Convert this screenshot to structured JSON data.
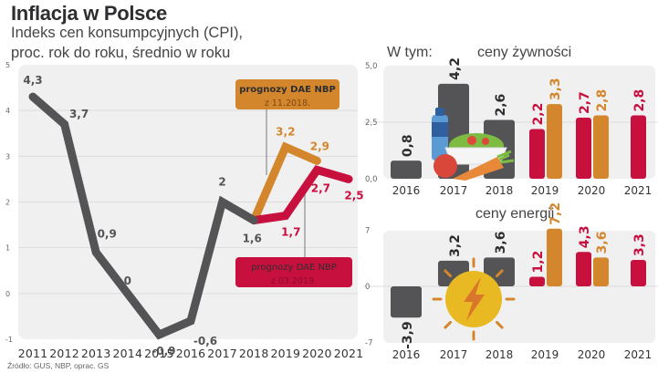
{
  "header": {
    "title": "Inflacja w Polsce",
    "subtitle_line1": "Indeks cen konsumpcyjnych (CPI),",
    "subtitle_line2": "proc. rok do roku, średnio w roku"
  },
  "source": "Źródło: GUS, NBP, oprac. GS",
  "right_header": "W tym:",
  "colors": {
    "actual": "#545456",
    "forecast_nov": "#d4862c",
    "forecast_mar": "#c8103f",
    "plot_bg": "#f0f0f1",
    "grid": "#dcdcde",
    "sun": "#e8b923"
  },
  "chart_data": [
    {
      "type": "line",
      "title": "Inflacja w Polsce",
      "subtitle": "Indeks cen konsumpcyjnych (CPI), proc. rok do roku, średnio w roku",
      "xlabel": "",
      "ylabel": "",
      "ylim": [
        -1,
        5
      ],
      "yticks": [
        "-1",
        "0",
        "1",
        "2",
        "3",
        "4",
        "5"
      ],
      "grid": true,
      "x": [
        "2011",
        "2012",
        "2013",
        "2014",
        "2015",
        "2016",
        "2017",
        "2018",
        "2019",
        "2020",
        "2021"
      ],
      "series": [
        {
          "name": "CPI",
          "x": [
            "2011",
            "2012",
            "2013",
            "2014",
            "2015",
            "2016",
            "2017",
            "2018"
          ],
          "values": [
            4.3,
            3.7,
            0.9,
            0.0,
            -0.9,
            -0.6,
            2.0,
            1.6
          ],
          "labels": [
            "4,3",
            "3,7",
            "0,9",
            "0",
            "-0,9",
            "-0,6",
            "2",
            "1,6"
          ]
        },
        {
          "name": "prognozy DAE NBP z 11.2018.",
          "x": [
            "2018",
            "2019",
            "2020"
          ],
          "values": [
            1.6,
            3.2,
            2.9
          ],
          "labels": [
            "",
            "3,2",
            "2,9"
          ]
        },
        {
          "name": "prognozy DAE NBP z 03.2019.",
          "x": [
            "2018",
            "2019",
            "2020",
            "2021"
          ],
          "values": [
            1.6,
            1.7,
            2.7,
            2.5
          ],
          "labels": [
            "",
            "1,7",
            "2,7",
            "2,5"
          ]
        }
      ],
      "annotations": [
        {
          "title": "prognozy DAE NBP",
          "date": "z 11.2018.",
          "series": "forecast_nov"
        },
        {
          "title": "prognozy DAE NBP",
          "date": "z 03.2019.",
          "series": "forecast_mar"
        }
      ]
    },
    {
      "type": "bar",
      "title": "ceny żywności",
      "ylim": [
        0,
        5
      ],
      "yticks": [
        "0,0",
        "2,5",
        "5,0"
      ],
      "categories": [
        "2016",
        "2017",
        "2018",
        "2019",
        "2020",
        "2021"
      ],
      "series": [
        {
          "name": "actual",
          "values": [
            0.8,
            4.2,
            2.6,
            null,
            null,
            null
          ],
          "labels": [
            "0,8",
            "4,2",
            "2,6",
            "",
            "",
            ""
          ]
        },
        {
          "name": "prognozy DAE NBP z 03.2019.",
          "values": [
            null,
            null,
            null,
            2.2,
            2.7,
            2.8
          ],
          "labels": [
            "",
            "",
            "",
            "2,2",
            "2,7",
            "2,8"
          ]
        },
        {
          "name": "prognozy DAE NBP z 11.2018.",
          "values": [
            null,
            null,
            null,
            3.3,
            2.8,
            null
          ],
          "labels": [
            "",
            "",
            "",
            "3,3",
            "2,8",
            ""
          ]
        }
      ],
      "illustration": "food-icon"
    },
    {
      "type": "bar",
      "title": "ceny energii",
      "ylim": [
        -7,
        7
      ],
      "yticks": [
        "-7",
        "0",
        "7"
      ],
      "categories": [
        "2016",
        "2017",
        "2018",
        "2019",
        "2020",
        "2021"
      ],
      "series": [
        {
          "name": "actual",
          "values": [
            -3.9,
            3.2,
            3.6,
            null,
            null,
            null
          ],
          "labels": [
            "-3,9",
            "3,2",
            "3,6",
            "",
            "",
            ""
          ]
        },
        {
          "name": "prognozy DAE NBP z 03.2019.",
          "values": [
            null,
            null,
            null,
            1.2,
            4.3,
            3.3
          ],
          "labels": [
            "",
            "",
            "",
            "1,2",
            "4,3",
            "3,3"
          ]
        },
        {
          "name": "prognozy DAE NBP z 11.2018.",
          "values": [
            null,
            null,
            null,
            7.2,
            3.6,
            null
          ],
          "labels": [
            "",
            "",
            "",
            "7,2",
            "3,6",
            ""
          ]
        }
      ],
      "illustration": "energy-sun-icon"
    }
  ]
}
